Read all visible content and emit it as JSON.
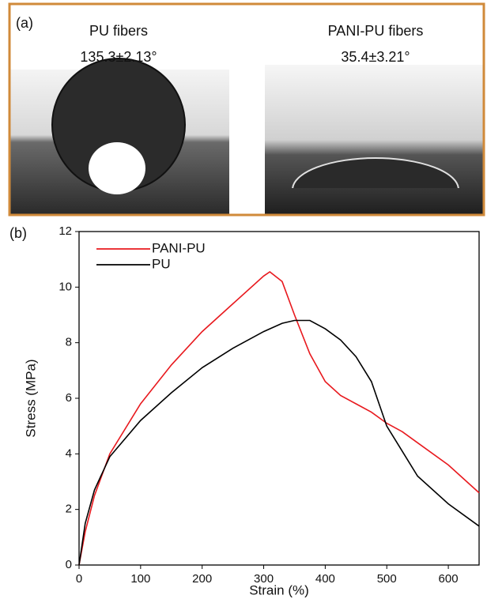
{
  "panel_a": {
    "label": "(a)",
    "left_title": "PU fibers",
    "left_angle": "135.3±2.13°",
    "right_title": "PANI-PU fibers",
    "right_angle": "35.4±3.21°"
  },
  "chart_data": {
    "type": "line",
    "panel_label": "(b)",
    "x_label": "Strain (%)",
    "y_label": "Stress (MPa)",
    "x": [
      0,
      10,
      25,
      50,
      100,
      150,
      200,
      250,
      300,
      310,
      330,
      350,
      375,
      400,
      425,
      450,
      475,
      500,
      525,
      550,
      600,
      650
    ],
    "series": [
      {
        "name": "PANI-PU",
        "color": "#e8191e",
        "values": [
          0,
          1.2,
          2.5,
          4.0,
          5.8,
          7.2,
          8.4,
          9.4,
          10.4,
          10.55,
          10.2,
          9.0,
          7.6,
          6.6,
          6.1,
          5.8,
          5.5,
          5.1,
          4.8,
          4.4,
          3.6,
          2.6
        ]
      },
      {
        "name": "PU",
        "color": "#000000",
        "values": [
          0,
          1.5,
          2.7,
          3.9,
          5.2,
          6.2,
          7.1,
          7.8,
          8.4,
          8.5,
          8.7,
          8.8,
          8.8,
          8.5,
          8.1,
          7.5,
          6.6,
          5.0,
          4.1,
          3.2,
          2.2,
          1.4
        ]
      }
    ],
    "xlim": [
      0,
      650
    ],
    "ylim": [
      0,
      12
    ],
    "xticks": [
      0,
      100,
      200,
      300,
      400,
      500,
      600
    ],
    "yticks": [
      0,
      2,
      4,
      6,
      8,
      10,
      12
    ],
    "legend": "upper left",
    "grid": false
  }
}
